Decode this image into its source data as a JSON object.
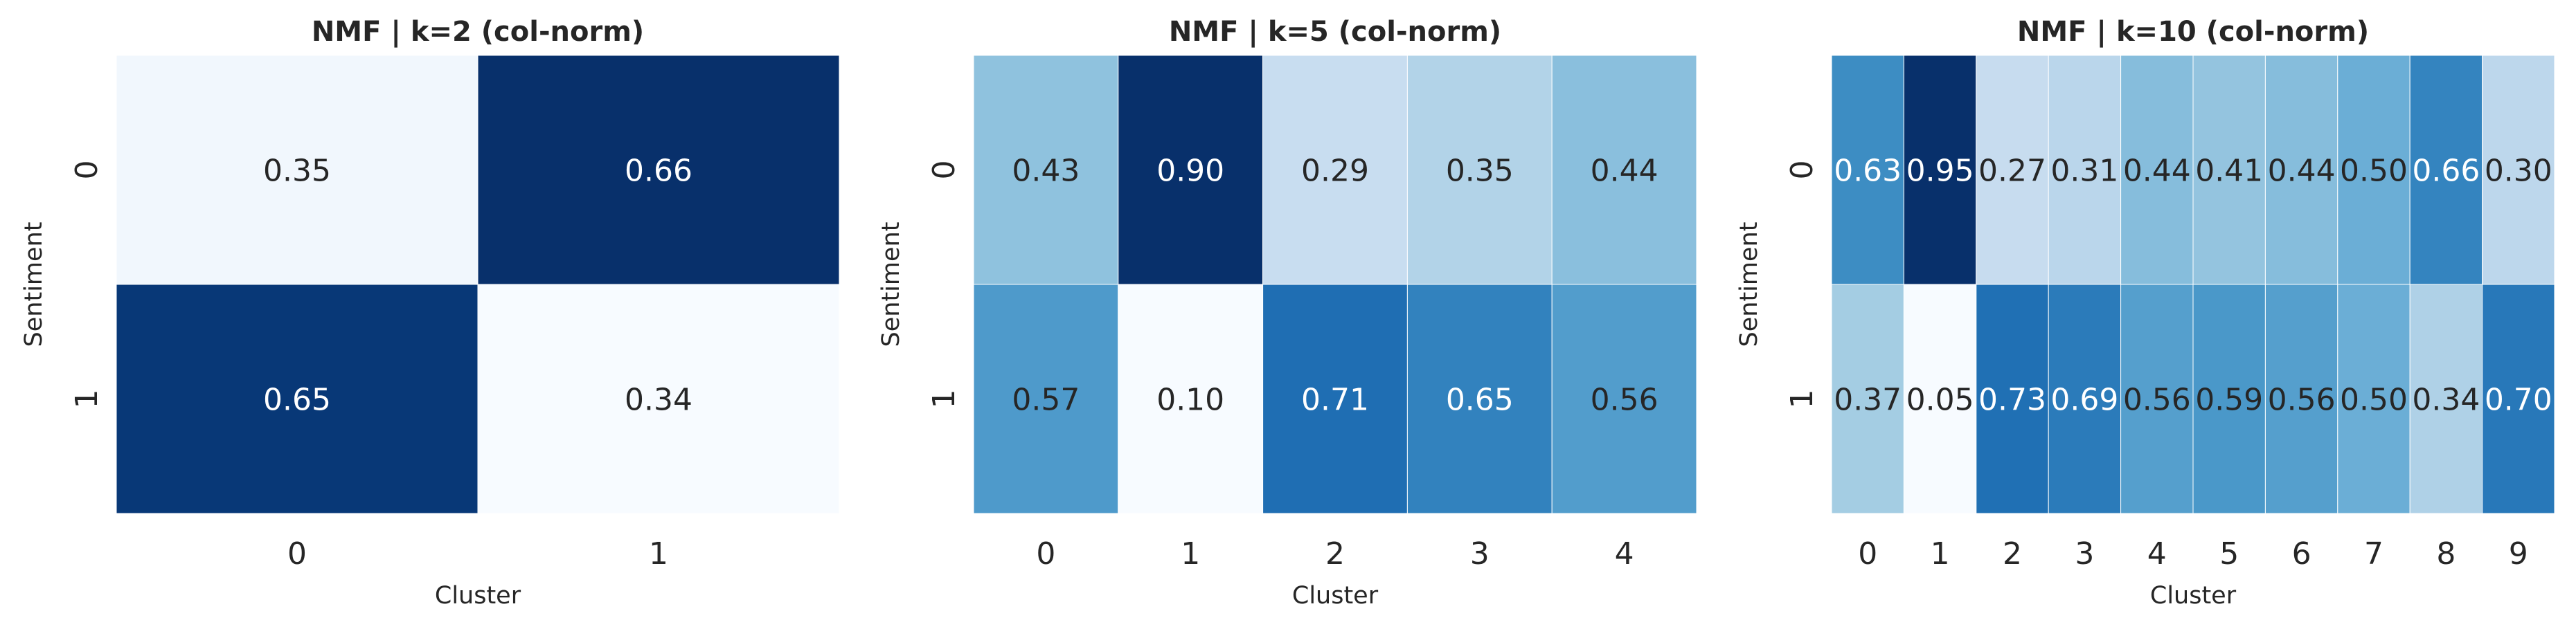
{
  "chart_data": [
    {
      "type": "heatmap",
      "title": "NMF | k=2 (col-norm)",
      "xlabel": "Cluster",
      "ylabel": "Sentiment",
      "x_categories": [
        "0",
        "1"
      ],
      "y_categories": [
        "0",
        "1"
      ],
      "values": [
        [
          0.35,
          0.66
        ],
        [
          0.65,
          0.34
        ]
      ],
      "value_labels": [
        [
          "0.35",
          "0.66"
        ],
        [
          "0.65",
          "0.34"
        ]
      ],
      "colormap": "Blues",
      "colorbar": false,
      "cell_gridlines_color": "#ffffff"
    },
    {
      "type": "heatmap",
      "title": "NMF | k=5 (col-norm)",
      "xlabel": "Cluster",
      "ylabel": "Sentiment",
      "x_categories": [
        "0",
        "1",
        "2",
        "3",
        "4"
      ],
      "y_categories": [
        "0",
        "1"
      ],
      "values": [
        [
          0.43,
          0.9,
          0.29,
          0.35,
          0.44
        ],
        [
          0.57,
          0.1,
          0.71,
          0.65,
          0.56
        ]
      ],
      "value_labels": [
        [
          "0.43",
          "0.90",
          "0.29",
          "0.35",
          "0.44"
        ],
        [
          "0.57",
          "0.10",
          "0.71",
          "0.65",
          "0.56"
        ]
      ],
      "colormap": "Blues",
      "colorbar": false,
      "cell_gridlines_color": "#ffffff"
    },
    {
      "type": "heatmap",
      "title": "NMF | k=10 (col-norm)",
      "xlabel": "Cluster",
      "ylabel": "Sentiment",
      "x_categories": [
        "0",
        "1",
        "2",
        "3",
        "4",
        "5",
        "6",
        "7",
        "8",
        "9"
      ],
      "y_categories": [
        "0",
        "1"
      ],
      "values": [
        [
          0.63,
          0.95,
          0.27,
          0.31,
          0.44,
          0.41,
          0.44,
          0.5,
          0.66,
          0.3
        ],
        [
          0.37,
          0.05,
          0.73,
          0.69,
          0.56,
          0.59,
          0.56,
          0.5,
          0.34,
          0.7
        ]
      ],
      "value_labels": [
        [
          "0.63",
          "0.95",
          "0.27",
          "0.31",
          "0.44",
          "0.41",
          "0.44",
          "0.50",
          "0.66",
          "0.30"
        ],
        [
          "0.37",
          "0.05",
          "0.73",
          "0.69",
          "0.56",
          "0.59",
          "0.56",
          "0.50",
          "0.34",
          "0.70"
        ]
      ],
      "colormap": "Blues",
      "colorbar": false,
      "cell_gridlines_color": "#ffffff"
    }
  ]
}
